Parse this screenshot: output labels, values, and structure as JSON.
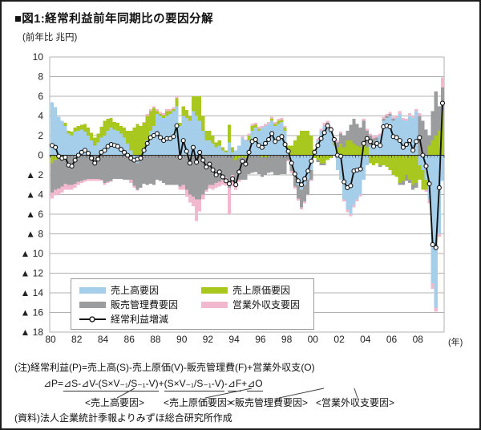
{
  "title": "■図1:経常利益前年同期比の要因分解",
  "axis_unit_label": "(前年比 兆円)",
  "colors": {
    "sales": "#A5CEEA",
    "cost": "#A8C820",
    "sga": "#9A9C9E",
    "nonop": "#F2B8CD",
    "line": "#111111",
    "grid": "#B0B0B0",
    "axis": "#222222"
  },
  "legend": {
    "items": [
      {
        "key": "sales",
        "label": "売上高要因"
      },
      {
        "key": "cost",
        "label": "売上原価要因"
      },
      {
        "key": "sga",
        "label": "販売管理費要因"
      },
      {
        "key": "nonop",
        "label": "営業外収支要因"
      },
      {
        "key": "line",
        "label": "経常利益増減"
      }
    ]
  },
  "notes": {
    "line1": "(注)経常利益(P)=売上高(S)-売上原価(V)-販売管理費(F)+営業外収支(O)",
    "formula_parts": [
      {
        "text": "⊿P=",
        "u": false
      },
      {
        "text": "⊿S-⊿V-(S×V₋₁/S₋₁-V)",
        "u": true
      },
      {
        "text": "+ ",
        "u": false
      },
      {
        "text": "(S×V₋₁/S₋₁-V)",
        "u": true
      },
      {
        "text": "-",
        "u": false
      },
      {
        "text": "⊿F",
        "u": true
      },
      {
        "text": "+",
        "u": false
      },
      {
        "text": "⊿O",
        "u": true
      }
    ],
    "factor_labels": [
      "<売上高要因>",
      "<売上原価要因>",
      "<販売管理費要因>",
      "<営業外収支要因>"
    ],
    "source": "(資料)法人企業統計季報よりみずほ総合研究所作成"
  },
  "chart_data": {
    "type": "bar",
    "combo": "stacked-bars-with-line",
    "frequency": "quarterly",
    "period_start": "1980Q1",
    "period_end": "2009Q4",
    "ylim": [
      -18,
      10
    ],
    "ytick_step": 2,
    "ytick_labels": [
      "10",
      "8",
      "6",
      "4",
      "2",
      "0",
      "▲ 2",
      "▲ 4",
      "▲ 6",
      "▲ 8",
      "▲ 10",
      "▲ 12",
      "▲ 14",
      "▲ 16",
      "▲ 18"
    ],
    "x_labels": [
      "80",
      "82",
      "84",
      "86",
      "88",
      "90",
      "92",
      "94",
      "96",
      "98",
      "00",
      "02",
      "04",
      "06",
      "08"
    ],
    "x_axis_unit": "(年)",
    "grid": true,
    "legend_position": "inside-bottom-left",
    "series": [
      {
        "name": "売上高要因",
        "key": "sales",
        "values": [
          5.4,
          4.9,
          3.9,
          3.5,
          3.0,
          2.2,
          2.0,
          2.4,
          2.5,
          2.6,
          2.4,
          2.0,
          1.5,
          1.0,
          1.3,
          1.8,
          2.0,
          2.5,
          2.8,
          2.6,
          2.5,
          2.2,
          1.8,
          1.2,
          0.5,
          -0.5,
          -0.8,
          -0.5,
          0.5,
          1.5,
          2.5,
          3.0,
          4.2,
          4.0,
          3.8,
          4.0,
          4.2,
          4.5,
          5.0,
          3.0,
          4.0,
          3.8,
          3.5,
          4.5,
          4.0,
          3.5,
          2.5,
          1.5,
          1.5,
          1.2,
          0.8,
          1.0,
          0.5,
          0.3,
          1.3,
          0.3,
          0.5,
          1.0,
          1.8,
          1.5,
          1.5,
          2.5,
          2.8,
          2.5,
          2.8,
          3.0,
          3.2,
          3.5,
          3.0,
          3.2,
          3.4,
          2.5,
          0.5,
          -1.0,
          -2.0,
          -3.0,
          -3.5,
          -3.0,
          -2.5,
          -1.5,
          0.5,
          1.5,
          2.5,
          3.0,
          3.0,
          2.5,
          1.0,
          -1.5,
          -2.5,
          -4.5,
          -5.5,
          -6.0,
          -5.0,
          -4.5,
          -4.0,
          -2.5,
          -1.0,
          1.0,
          1.2,
          1.5,
          2.0,
          3.5,
          3.8,
          4.0,
          3.5,
          3.8,
          4.2,
          3.6,
          3.5,
          4.0,
          3.8,
          4.5,
          -1.0,
          -1.5,
          -2.5,
          -4.5,
          -13.0,
          -15.5,
          -8.0,
          -2.6
        ]
      },
      {
        "name": "売上原価要因",
        "key": "cost",
        "values": [
          -0.8,
          -0.5,
          -0.3,
          -0.2,
          0.3,
          0.3,
          0.4,
          0.4,
          0.5,
          0.5,
          0.8,
          0.8,
          0.8,
          0.8,
          0.9,
          1.1,
          1.5,
          1.2,
          1.0,
          0.8,
          0.8,
          0.8,
          1.0,
          1.3,
          2.0,
          2.8,
          3.2,
          3.0,
          2.8,
          2.5,
          2.0,
          1.8,
          0.3,
          0.2,
          0.3,
          0.5,
          0.3,
          0.2,
          0.8,
          0.3,
          1.0,
          0.8,
          0.5,
          1.5,
          2.0,
          2.5,
          1.5,
          1.0,
          1.0,
          0.8,
          0.5,
          0.5,
          0.3,
          0.2,
          1.8,
          0.5,
          -0.5,
          -0.3,
          -0.2,
          -0.3,
          0.5,
          0.5,
          0.3,
          0.2,
          -0.2,
          -0.2,
          -0.1,
          0.2,
          0.2,
          0.3,
          0.2,
          0.3,
          0.5,
          1.0,
          1.5,
          2.0,
          2.5,
          2.5,
          2.5,
          2.0,
          -0.3,
          -0.5,
          -0.8,
          -0.8,
          -0.5,
          -0.3,
          0.3,
          0.8,
          1.2,
          0.8,
          1.5,
          1.5,
          1.2,
          1.0,
          0.8,
          1.2,
          0.8,
          -0.8,
          -1.0,
          -0.8,
          -1.0,
          -1.0,
          -1.2,
          -1.5,
          -2.0,
          -2.2,
          -2.8,
          -2.6,
          -2.0,
          -2.5,
          -3.0,
          -2.8,
          -1.5,
          -2.0,
          -1.0,
          1.0,
          1.5,
          2.0,
          2.5,
          4.6
        ]
      },
      {
        "name": "販売管理費要因",
        "key": "sga",
        "values": [
          -3.0,
          -3.0,
          -3.1,
          -3.0,
          -2.9,
          -3.0,
          -3.0,
          -2.9,
          -2.7,
          -2.6,
          -2.5,
          -2.4,
          -2.4,
          -2.4,
          -2.4,
          -2.5,
          -2.8,
          -2.7,
          -2.6,
          -2.4,
          -2.4,
          -2.4,
          -2.5,
          -2.5,
          -2.5,
          -2.6,
          -2.7,
          -2.8,
          -2.9,
          -3.0,
          -2.9,
          -3.0,
          -2.5,
          -2.6,
          -2.8,
          -3.0,
          -3.0,
          -3.0,
          -3.0,
          -3.2,
          -3.0,
          -3.5,
          -4.0,
          -4.2,
          -4.5,
          -4.5,
          -4.0,
          -3.5,
          -3.0,
          -3.0,
          -2.8,
          -2.7,
          -2.5,
          -2.3,
          -3.3,
          -2.0,
          -2.5,
          -2.2,
          -2.3,
          -2.2,
          -1.9,
          -1.8,
          -1.7,
          -1.9,
          -2.0,
          -1.8,
          -1.7,
          -1.7,
          -2.0,
          -2.0,
          -1.9,
          -1.9,
          -0.5,
          -0.6,
          -1.2,
          -1.4,
          -1.8,
          -1.7,
          -1.5,
          -1.0,
          0.0,
          -0.2,
          -0.2,
          -0.2,
          0.3,
          0.2,
          0.2,
          0.5,
          1.0,
          1.2,
          1.0,
          1.6,
          2.5,
          2.2,
          2.0,
          2.3,
          1.7,
          1.0,
          0.5,
          0.3,
          -0.2,
          0.2,
          0.2,
          0.2,
          0.2,
          0.0,
          -0.2,
          -0.4,
          -0.6,
          -0.3,
          -0.5,
          -0.5,
          4.0,
          3.5,
          2.6,
          1.0,
          3.0,
          4.5,
          2.5,
          2.3
        ]
      },
      {
        "name": "営業外収支要因",
        "key": "nonop",
        "values": [
          -0.6,
          -0.6,
          -0.6,
          -0.6,
          -0.6,
          -0.5,
          -0.5,
          -0.4,
          -0.3,
          -0.2,
          -0.2,
          -0.2,
          -0.2,
          -0.2,
          -0.2,
          -0.1,
          -0.2,
          -0.1,
          -0.1,
          0.0,
          0.0,
          0.0,
          0.0,
          0.0,
          -0.3,
          -0.2,
          -0.1,
          0.0,
          0.1,
          0.2,
          0.2,
          0.2,
          0.2,
          0.2,
          0.2,
          0.2,
          0.2,
          0.2,
          0.2,
          -0.3,
          -0.5,
          -0.7,
          -0.8,
          -1.0,
          -2.2,
          -1.2,
          -0.5,
          -0.2,
          -0.4,
          -0.5,
          -0.5,
          -0.5,
          -0.5,
          -0.8,
          -2.7,
          -1.2,
          -0.5,
          -0.2,
          0.1,
          0.1,
          0.2,
          0.2,
          0.2,
          0.2,
          0.2,
          0.2,
          0.2,
          0.2,
          0.2,
          0.2,
          0.2,
          0.2,
          -0.1,
          -0.2,
          -0.2,
          -0.2,
          -0.2,
          -0.2,
          -0.1,
          -0.1,
          0.1,
          0.2,
          0.2,
          0.3,
          0.2,
          0.2,
          0.1,
          0.2,
          0.2,
          -0.2,
          -0.3,
          -0.2,
          -0.3,
          -0.2,
          -0.2,
          0.2,
          0.2,
          0.2,
          0.2,
          0.2,
          0.2,
          0.2,
          0.2,
          0.2,
          0.2,
          0.2,
          0.3,
          0.2,
          0.2,
          0.3,
          0.2,
          0.2,
          0.3,
          0.0,
          -0.2,
          -0.4,
          -0.6,
          -0.4,
          -0.3,
          1.0
        ]
      }
    ],
    "line_series": {
      "name": "経常利益増減",
      "key": "line",
      "marker": "white-circle",
      "values": [
        1.0,
        0.8,
        -0.1,
        -0.3,
        -0.2,
        -1.0,
        -1.1,
        -0.5,
        0.0,
        0.3,
        0.5,
        0.2,
        -0.3,
        -0.8,
        -0.4,
        0.3,
        0.5,
        0.9,
        1.1,
        1.0,
        0.9,
        0.6,
        0.3,
        0.0,
        -0.3,
        -0.5,
        -0.4,
        -0.3,
        0.5,
        1.2,
        1.8,
        2.0,
        2.2,
        1.8,
        1.5,
        1.7,
        1.7,
        1.9,
        3.0,
        -0.2,
        1.5,
        0.4,
        -0.8,
        0.8,
        -0.7,
        0.3,
        -0.5,
        -1.2,
        -0.9,
        -1.5,
        -2.0,
        -1.7,
        -2.2,
        -2.6,
        -2.9,
        -2.4,
        -3.0,
        -1.7,
        -0.6,
        -0.9,
        0.3,
        1.4,
        1.6,
        1.0,
        0.8,
        1.2,
        1.6,
        2.2,
        1.4,
        1.7,
        1.9,
        1.1,
        0.4,
        -0.8,
        -1.9,
        -2.6,
        -3.0,
        -2.4,
        -1.6,
        -0.6,
        0.3,
        1.0,
        1.7,
        2.3,
        3.0,
        2.6,
        1.6,
        0.0,
        -0.1,
        -2.7,
        -3.3,
        -3.1,
        -1.6,
        -1.5,
        -1.4,
        1.2,
        1.7,
        1.4,
        0.9,
        1.2,
        1.0,
        2.9,
        3.0,
        2.9,
        1.9,
        1.8,
        1.5,
        0.8,
        1.1,
        1.5,
        0.5,
        1.4,
        1.8,
        0.0,
        -1.1,
        -2.9,
        -9.1,
        -9.4,
        -3.3,
        5.3
      ]
    }
  }
}
